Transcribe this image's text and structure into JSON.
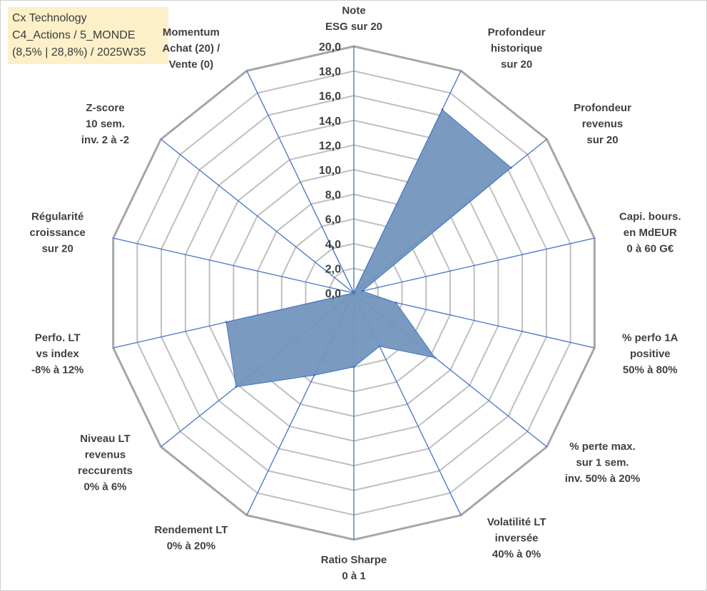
{
  "title_box": {
    "line1": "Cx Technology",
    "line2": "C4_Actions / 5_MONDE",
    "line3": "(8,5% | 28,8%) / 2025W35"
  },
  "chart_data": {
    "type": "radar",
    "rmin": 0,
    "rmax": 20,
    "tick_step": 2,
    "tick_labels": [
      "0,0",
      "2,0",
      "4,0",
      "6,0",
      "8,0",
      "10,0",
      "12,0",
      "14,0",
      "16,0",
      "18,0",
      "20,0"
    ],
    "axes": [
      [
        "Note",
        "ESG sur 20"
      ],
      [
        "Profondeur",
        "historique",
        "sur 20"
      ],
      [
        "Profondeur",
        "revenus",
        "sur 20"
      ],
      [
        "Capi. bours.",
        "en MdEUR",
        "0 à 60 G€"
      ],
      [
        "% perfo 1A",
        "positive",
        "50% à 80%"
      ],
      [
        "% perte max.",
        "sur 1 sem.",
        "inv. 50% à 20%"
      ],
      [
        "Volatilité LT",
        "inversée",
        "40% à 0%"
      ],
      [
        "Ratio Sharpe",
        "0 à 1"
      ],
      [
        "Rendement LT",
        "0% à 20%"
      ],
      [
        "Niveau LT",
        "revenus",
        "reccurents",
        "0% à 6%"
      ],
      [
        "Perfo. LT",
        "vs index",
        "-8% à 12%"
      ],
      [
        "Régularité",
        "croissance",
        "sur 20"
      ],
      [
        "Z-score",
        "10 sem.",
        "inv. 2 à -2"
      ],
      [
        "Momentum",
        "Achat (20) /",
        "Vente (0)"
      ]
    ],
    "values": [
      0,
      16.5,
      16.3,
      0.7,
      3.5,
      8.4,
      4.8,
      6.0,
      7.4,
      12.2,
      10.6,
      0,
      0,
      4.2
    ],
    "fill_color": "#7395bd",
    "line_color": "#4472c4",
    "grid_color": "#bfbfbf",
    "outer_grid_color": "#a6a6a6"
  }
}
